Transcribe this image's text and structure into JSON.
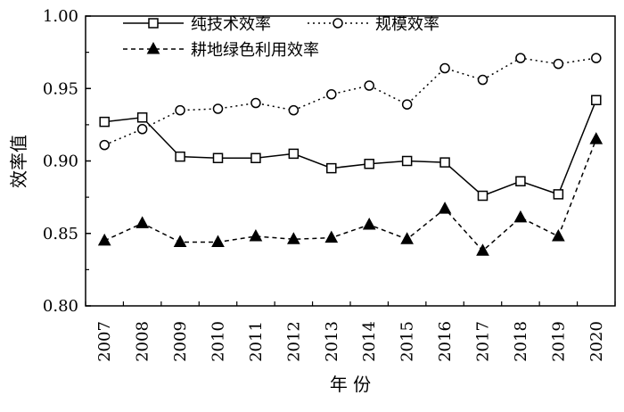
{
  "chart_data": {
    "type": "line",
    "x": [
      "2007",
      "2008",
      "2009",
      "2010",
      "2011",
      "2012",
      "2013",
      "2014",
      "2015",
      "2016",
      "2017",
      "2018",
      "2019",
      "2020"
    ],
    "xlabel": "年 份",
    "ylabel": "效率值",
    "ylim": [
      0.8,
      1.0
    ],
    "yticks": [
      "0.80",
      "0.85",
      "0.90",
      "0.95",
      "1.00"
    ],
    "grid": false,
    "legend_position": "top-left",
    "series": [
      {
        "name": "纯技术效率",
        "marker": "square-open",
        "line": "solid",
        "values": [
          0.927,
          0.93,
          0.903,
          0.902,
          0.902,
          0.905,
          0.895,
          0.898,
          0.9,
          0.899,
          0.876,
          0.886,
          0.877,
          0.942
        ]
      },
      {
        "name": "规模效率",
        "marker": "circle-open",
        "line": "dotted",
        "values": [
          0.911,
          0.922,
          0.935,
          0.936,
          0.94,
          0.935,
          0.946,
          0.952,
          0.939,
          0.964,
          0.956,
          0.971,
          0.967,
          0.971
        ]
      },
      {
        "name": "耕地绿色利用效率",
        "marker": "triangle-filled",
        "line": "dashed",
        "values": [
          0.845,
          0.857,
          0.844,
          0.844,
          0.848,
          0.846,
          0.847,
          0.856,
          0.846,
          0.867,
          0.838,
          0.861,
          0.848,
          0.915
        ]
      }
    ]
  }
}
